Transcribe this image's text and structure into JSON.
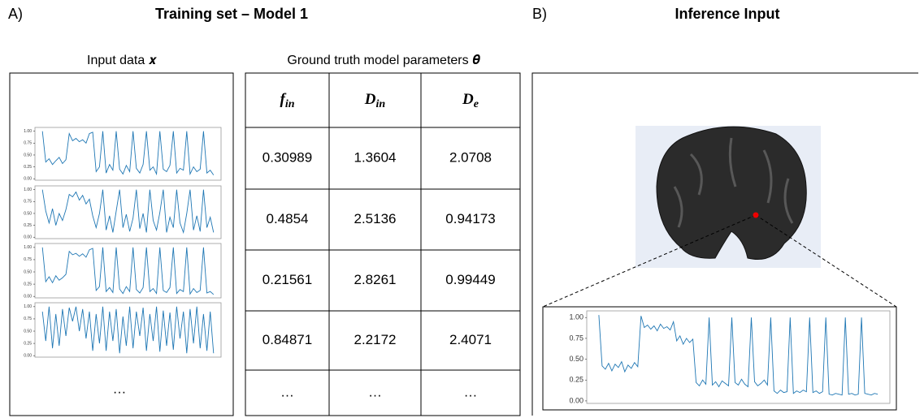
{
  "panel_a": {
    "label": "A)",
    "title": "Training set – Model 1",
    "input_caption": "Input data 𝒙",
    "table_caption": "Ground truth model parameters 𝜽",
    "input_more": "…"
  },
  "table": {
    "header": [
      {
        "symbol": "f",
        "subscript": "in"
      },
      {
        "symbol": "D",
        "subscript": "in"
      },
      {
        "symbol": "D",
        "subscript": "e"
      }
    ],
    "rows": [
      [
        "0.30989",
        "1.3604",
        "2.0708"
      ],
      [
        "0.4854",
        "2.5136",
        "0.94173"
      ],
      [
        "0.21561",
        "2.8261",
        "0.99449"
      ],
      [
        "0.84871",
        "2.2172",
        "2.4071"
      ],
      [
        "…",
        "…",
        "…"
      ]
    ]
  },
  "panel_b": {
    "label": "B)",
    "title": "Inference Input"
  },
  "signal_axis": {
    "ylim": [
      -0.03,
      1.08
    ],
    "yticks": [
      {
        "value": 0,
        "label": "0.00"
      },
      {
        "value": 0.25,
        "label": "0.25"
      },
      {
        "value": 0.5,
        "label": "0.50"
      },
      {
        "value": 0.75,
        "label": "0.75"
      },
      {
        "value": 1,
        "label": "1.00"
      }
    ]
  },
  "training_signals": [
    {
      "values": [
        1.0,
        0.35,
        0.42,
        0.3,
        0.38,
        0.45,
        0.32,
        0.4,
        0.95,
        0.8,
        0.85,
        0.78,
        0.82,
        0.75,
        0.95,
        0.98,
        0.15,
        0.25,
        1.0,
        0.12,
        0.3,
        0.18,
        1.0,
        0.2,
        0.1,
        0.28,
        0.15,
        1.0,
        0.22,
        0.12,
        0.3,
        1.0,
        0.18,
        0.25,
        0.1,
        1.0,
        0.2,
        0.15,
        0.28,
        1.0,
        0.12,
        0.22,
        0.18,
        1.0,
        0.1,
        0.25,
        0.15,
        0.2,
        1.0,
        0.12,
        0.18,
        0.08
      ]
    },
    {
      "values": [
        1.0,
        0.55,
        0.3,
        0.6,
        0.25,
        0.5,
        0.35,
        0.58,
        0.9,
        0.85,
        0.95,
        0.78,
        0.88,
        0.7,
        0.8,
        0.45,
        0.2,
        0.5,
        1.0,
        0.15,
        0.45,
        0.1,
        0.55,
        1.0,
        0.2,
        0.48,
        0.12,
        0.4,
        1.0,
        0.18,
        0.5,
        0.1,
        1.0,
        0.35,
        0.15,
        0.52,
        1.0,
        0.1,
        0.42,
        0.2,
        1.0,
        0.3,
        0.1,
        0.5,
        1.0,
        0.15,
        0.45,
        0.12,
        1.0,
        0.2,
        0.42,
        0.1
      ]
    },
    {
      "values": [
        1.0,
        0.3,
        0.4,
        0.28,
        0.42,
        0.33,
        0.38,
        0.45,
        0.92,
        0.85,
        0.88,
        0.82,
        0.87,
        0.8,
        0.95,
        0.98,
        0.12,
        0.2,
        1.0,
        0.1,
        0.18,
        0.08,
        1.0,
        0.15,
        0.06,
        0.2,
        0.1,
        1.0,
        0.14,
        0.07,
        0.18,
        1.0,
        0.1,
        0.16,
        0.06,
        1.0,
        0.12,
        0.08,
        0.18,
        1.0,
        0.06,
        0.14,
        0.1,
        1.0,
        0.05,
        0.16,
        0.08,
        0.12,
        1.0,
        0.07,
        0.1,
        0.04
      ]
    },
    {
      "values": [
        0.9,
        0.3,
        1.0,
        0.15,
        0.85,
        0.2,
        0.95,
        0.4,
        0.98,
        0.7,
        1.0,
        0.5,
        0.95,
        0.35,
        0.9,
        0.1,
        0.85,
        0.25,
        1.0,
        0.1,
        0.9,
        0.3,
        0.95,
        0.05,
        0.8,
        0.2,
        1.0,
        0.15,
        0.9,
        0.4,
        0.98,
        0.1,
        0.85,
        0.3,
        1.0,
        0.08,
        0.92,
        0.2,
        0.88,
        0.12,
        1.0,
        0.35,
        0.9,
        0.05,
        0.95,
        0.25,
        1.0,
        0.15,
        0.85,
        0.1,
        0.9,
        0.05
      ]
    }
  ],
  "inference_signal": {
    "values": [
      1.03,
      0.42,
      0.38,
      0.45,
      0.36,
      0.44,
      0.4,
      0.47,
      0.35,
      0.43,
      0.39,
      0.46,
      0.41,
      1.02,
      0.88,
      0.91,
      0.86,
      0.9,
      0.84,
      0.92,
      0.87,
      0.89,
      0.85,
      0.95,
      0.72,
      0.78,
      0.68,
      0.75,
      0.7,
      0.74,
      0.22,
      0.18,
      0.25,
      0.2,
      1.0,
      0.19,
      0.23,
      0.17,
      0.24,
      0.21,
      0.18,
      1.0,
      0.22,
      0.19,
      0.26,
      0.2,
      0.17,
      1.0,
      0.23,
      0.18,
      0.21,
      0.25,
      0.19,
      1.0,
      0.12,
      0.09,
      0.13,
      0.1,
      0.11,
      1.0,
      0.09,
      0.12,
      0.1,
      0.13,
      0.11,
      1.0,
      0.1,
      0.12,
      0.09,
      0.11,
      1.0,
      0.08,
      0.07,
      0.09,
      0.08,
      0.07,
      1.0,
      0.08,
      0.09,
      0.07,
      0.08,
      1.0,
      0.09,
      0.08,
      0.07,
      0.09,
      0.08
    ]
  }
}
